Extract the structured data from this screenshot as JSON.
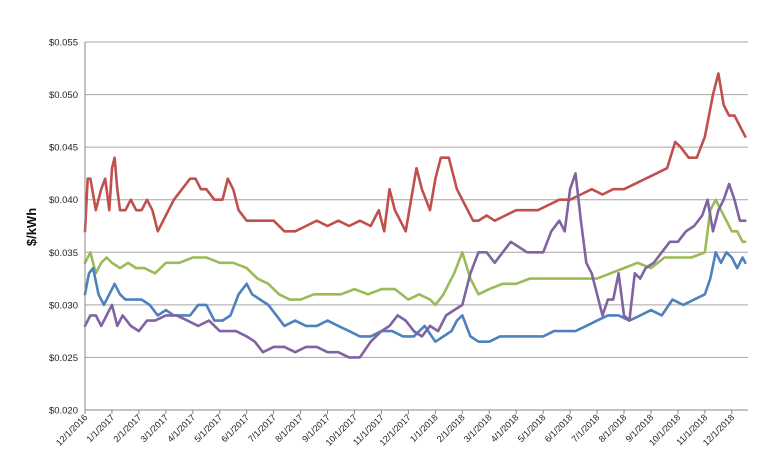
{
  "chart_data": {
    "type": "line",
    "title": "",
    "xlabel": "",
    "ylabel": "$/kWh",
    "ylim": [
      0.02,
      0.055
    ],
    "yticks": [
      "$0.020",
      "$0.025",
      "$0.030",
      "$0.035",
      "$0.040",
      "$0.045",
      "$0.050",
      "$0.055"
    ],
    "ytick_values": [
      0.02,
      0.025,
      0.03,
      0.035,
      0.04,
      0.045,
      0.05,
      0.055
    ],
    "xticks": [
      "12/1/2016",
      "1/1/2017",
      "2/1/2017",
      "3/1/2017",
      "4/1/2017",
      "5/1/2017",
      "6/1/2017",
      "7/1/2017",
      "8/1/2017",
      "9/1/2017",
      "10/1/2017",
      "11/1/2017",
      "12/1/2017",
      "1/1/2018",
      "2/1/2018",
      "3/1/2018",
      "4/1/2018",
      "5/1/2018",
      "6/1/2018",
      "7/1/2018",
      "8/1/2018",
      "9/1/2018",
      "10/1/2018",
      "11/1/2018",
      "12/1/2018"
    ],
    "x_range_months": [
      0,
      24.6
    ],
    "grid": "horizontal",
    "legend": "none",
    "series": [
      {
        "color": "#c0504d",
        "x": [
          0,
          0.1,
          0.2,
          0.4,
          0.6,
          0.75,
          0.9,
          1.0,
          1.1,
          1.2,
          1.3,
          1.5,
          1.7,
          1.9,
          2.1,
          2.3,
          2.5,
          2.7,
          2.9,
          3.1,
          3.3,
          3.6,
          3.9,
          4.1,
          4.3,
          4.5,
          4.8,
          5.1,
          5.3,
          5.5,
          5.7,
          6.0,
          6.3,
          6.6,
          7.0,
          7.4,
          7.8,
          8.2,
          8.6,
          9.0,
          9.4,
          9.8,
          10.2,
          10.6,
          10.9,
          11.1,
          11.3,
          11.5,
          11.7,
          11.9,
          12.1,
          12.3,
          12.5,
          12.8,
          13.0,
          13.2,
          13.5,
          13.8,
          14.0,
          14.2,
          14.4,
          14.6,
          14.9,
          15.2,
          15.6,
          16.0,
          16.4,
          16.8,
          17.2,
          17.6,
          18.0,
          18.4,
          18.8,
          19.2,
          19.6,
          20.0,
          20.4,
          20.8,
          21.2,
          21.6,
          21.9,
          22.1,
          22.4,
          22.7,
          23.0,
          23.3,
          23.5,
          23.7,
          23.9,
          24.1,
          24.3,
          24.5
        ],
        "values": [
          0.037,
          0.042,
          0.042,
          0.039,
          0.041,
          0.042,
          0.039,
          0.043,
          0.044,
          0.041,
          0.039,
          0.039,
          0.04,
          0.039,
          0.039,
          0.04,
          0.039,
          0.037,
          0.038,
          0.039,
          0.04,
          0.041,
          0.042,
          0.042,
          0.041,
          0.041,
          0.04,
          0.04,
          0.042,
          0.041,
          0.039,
          0.038,
          0.038,
          0.038,
          0.038,
          0.037,
          0.037,
          0.0375,
          0.038,
          0.0375,
          0.038,
          0.0375,
          0.038,
          0.0375,
          0.039,
          0.037,
          0.041,
          0.039,
          0.038,
          0.037,
          0.04,
          0.043,
          0.041,
          0.039,
          0.042,
          0.044,
          0.044,
          0.041,
          0.04,
          0.039,
          0.038,
          0.038,
          0.0385,
          0.038,
          0.0385,
          0.039,
          0.039,
          0.039,
          0.0395,
          0.04,
          0.04,
          0.0405,
          0.041,
          0.0405,
          0.041,
          0.041,
          0.0415,
          0.042,
          0.0425,
          0.043,
          0.0455,
          0.045,
          0.044,
          0.044,
          0.046,
          0.05,
          0.052,
          0.049,
          0.048,
          0.048,
          0.047,
          0.046
        ]
      },
      {
        "color": "#9bbb59",
        "x": [
          0,
          0.2,
          0.4,
          0.6,
          0.8,
          1.0,
          1.3,
          1.6,
          1.9,
          2.2,
          2.6,
          3.0,
          3.5,
          4.0,
          4.5,
          5.0,
          5.5,
          6.0,
          6.4,
          6.8,
          7.2,
          7.6,
          8.0,
          8.5,
          9.0,
          9.5,
          10.0,
          10.5,
          11.0,
          11.5,
          12.0,
          12.4,
          12.8,
          13.0,
          13.3,
          13.5,
          13.7,
          14.0,
          14.3,
          14.6,
          15.0,
          15.5,
          16.0,
          16.5,
          17.0,
          17.5,
          18.0,
          18.5,
          19.0,
          19.5,
          20.0,
          20.5,
          21.0,
          21.5,
          22.0,
          22.5,
          23.0,
          23.2,
          23.4,
          23.6,
          23.8,
          24.0,
          24.2,
          24.4,
          24.5
        ],
        "values": [
          0.034,
          0.035,
          0.033,
          0.034,
          0.0345,
          0.034,
          0.0335,
          0.034,
          0.0335,
          0.0335,
          0.033,
          0.034,
          0.034,
          0.0345,
          0.0345,
          0.034,
          0.034,
          0.0335,
          0.0325,
          0.032,
          0.031,
          0.0305,
          0.0305,
          0.031,
          0.031,
          0.031,
          0.0315,
          0.031,
          0.0315,
          0.0315,
          0.0305,
          0.031,
          0.0305,
          0.03,
          0.031,
          0.032,
          0.033,
          0.035,
          0.0325,
          0.031,
          0.0315,
          0.032,
          0.032,
          0.0325,
          0.0325,
          0.0325,
          0.0325,
          0.0325,
          0.0325,
          0.033,
          0.0335,
          0.034,
          0.0335,
          0.0345,
          0.0345,
          0.0345,
          0.035,
          0.039,
          0.04,
          0.039,
          0.038,
          0.037,
          0.037,
          0.036,
          0.036
        ]
      },
      {
        "color": "#4f81bd",
        "x": [
          0,
          0.15,
          0.3,
          0.5,
          0.7,
          0.9,
          1.1,
          1.3,
          1.5,
          1.8,
          2.1,
          2.4,
          2.7,
          3.0,
          3.3,
          3.6,
          3.9,
          4.2,
          4.5,
          4.8,
          5.1,
          5.4,
          5.7,
          6.0,
          6.2,
          6.5,
          6.8,
          7.1,
          7.4,
          7.8,
          8.2,
          8.6,
          9.0,
          9.4,
          9.8,
          10.2,
          10.6,
          11.0,
          11.4,
          11.8,
          12.2,
          12.6,
          13.0,
          13.3,
          13.6,
          13.8,
          14.0,
          14.3,
          14.6,
          15.0,
          15.4,
          15.8,
          16.2,
          16.6,
          17.0,
          17.4,
          17.8,
          18.2,
          18.6,
          19.0,
          19.4,
          19.8,
          20.2,
          20.6,
          21.0,
          21.4,
          21.8,
          22.2,
          22.6,
          23.0,
          23.2,
          23.4,
          23.6,
          23.8,
          24.0,
          24.2,
          24.4,
          24.5
        ],
        "values": [
          0.031,
          0.033,
          0.0335,
          0.031,
          0.03,
          0.031,
          0.032,
          0.031,
          0.0305,
          0.0305,
          0.0305,
          0.03,
          0.029,
          0.0295,
          0.029,
          0.029,
          0.029,
          0.03,
          0.03,
          0.0285,
          0.0285,
          0.029,
          0.031,
          0.032,
          0.031,
          0.0305,
          0.03,
          0.029,
          0.028,
          0.0285,
          0.028,
          0.028,
          0.0285,
          0.028,
          0.0275,
          0.027,
          0.027,
          0.0275,
          0.0275,
          0.027,
          0.027,
          0.028,
          0.0265,
          0.027,
          0.0275,
          0.0285,
          0.029,
          0.027,
          0.0265,
          0.0265,
          0.027,
          0.027,
          0.027,
          0.027,
          0.027,
          0.0275,
          0.0275,
          0.0275,
          0.028,
          0.0285,
          0.029,
          0.029,
          0.0285,
          0.029,
          0.0295,
          0.029,
          0.0305,
          0.03,
          0.0305,
          0.031,
          0.0325,
          0.035,
          0.034,
          0.035,
          0.0345,
          0.0335,
          0.0345,
          0.034
        ]
      },
      {
        "color": "#8064a2",
        "x": [
          0,
          0.2,
          0.4,
          0.6,
          0.8,
          1.0,
          1.2,
          1.4,
          1.7,
          2.0,
          2.3,
          2.6,
          3.0,
          3.4,
          3.8,
          4.2,
          4.6,
          5.0,
          5.3,
          5.6,
          6.0,
          6.3,
          6.6,
          7.0,
          7.4,
          7.8,
          8.2,
          8.6,
          9.0,
          9.4,
          9.8,
          10.2,
          10.6,
          11.0,
          11.3,
          11.6,
          11.9,
          12.2,
          12.5,
          12.8,
          13.1,
          13.4,
          13.7,
          14.0,
          14.3,
          14.6,
          14.9,
          15.2,
          15.5,
          15.8,
          16.1,
          16.4,
          16.7,
          17.0,
          17.3,
          17.6,
          17.8,
          18.0,
          18.2,
          18.4,
          18.6,
          18.8,
          19.0,
          19.2,
          19.4,
          19.6,
          19.8,
          20.0,
          20.2,
          20.4,
          20.6,
          20.8,
          21.1,
          21.4,
          21.7,
          22.0,
          22.3,
          22.6,
          22.9,
          23.1,
          23.3,
          23.5,
          23.7,
          23.9,
          24.1,
          24.3,
          24.5
        ],
        "values": [
          0.028,
          0.029,
          0.029,
          0.028,
          0.029,
          0.03,
          0.028,
          0.029,
          0.028,
          0.0275,
          0.0285,
          0.0285,
          0.029,
          0.029,
          0.0285,
          0.028,
          0.0285,
          0.0275,
          0.0275,
          0.0275,
          0.027,
          0.0265,
          0.0255,
          0.026,
          0.026,
          0.0255,
          0.026,
          0.026,
          0.0255,
          0.0255,
          0.025,
          0.025,
          0.0265,
          0.0275,
          0.028,
          0.029,
          0.0285,
          0.0275,
          0.027,
          0.028,
          0.0275,
          0.029,
          0.0295,
          0.03,
          0.033,
          0.035,
          0.035,
          0.034,
          0.035,
          0.036,
          0.0355,
          0.035,
          0.035,
          0.035,
          0.037,
          0.038,
          0.037,
          0.041,
          0.0425,
          0.038,
          0.034,
          0.033,
          0.031,
          0.029,
          0.0305,
          0.0305,
          0.033,
          0.029,
          0.0285,
          0.033,
          0.0325,
          0.0335,
          0.034,
          0.035,
          0.036,
          0.036,
          0.037,
          0.0375,
          0.0385,
          0.04,
          0.037,
          0.039,
          0.04,
          0.0415,
          0.04,
          0.038,
          0.038
        ]
      }
    ]
  }
}
